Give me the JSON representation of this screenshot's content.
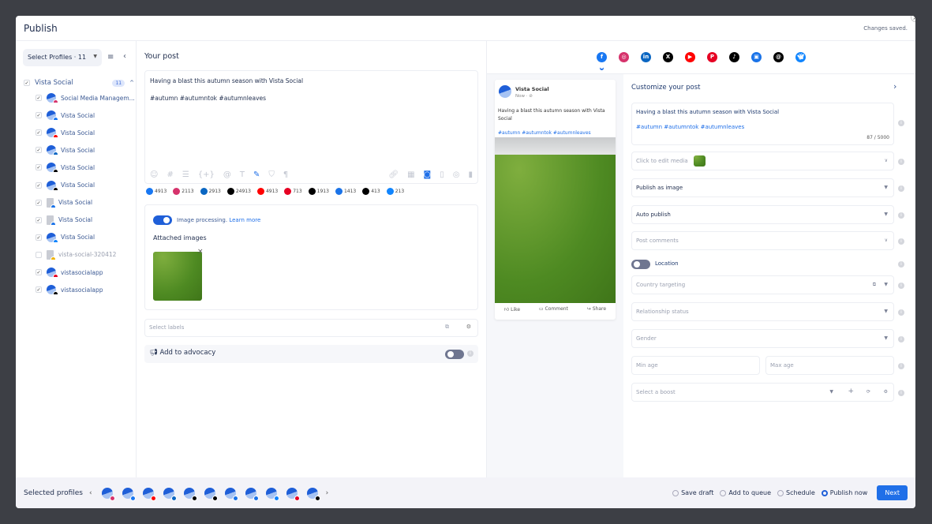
{
  "header": {
    "title": "Publish",
    "status": "Changes saved."
  },
  "sidebar": {
    "select_label": "Select Profiles · 11",
    "group": {
      "name": "Vista Social",
      "count": "11"
    },
    "profiles": [
      {
        "name": "Social Media Managem...",
        "network": "instagram",
        "checked": true,
        "color": "#d6336c"
      },
      {
        "name": "Vista Social",
        "network": "facebook",
        "checked": true,
        "color": "#1877f2"
      },
      {
        "name": "Vista Social",
        "network": "youtube",
        "checked": true,
        "color": "#ff0000"
      },
      {
        "name": "Vista Social",
        "network": "linkedin",
        "checked": true,
        "color": "#0a66c2"
      },
      {
        "name": "Vista Social",
        "network": "x",
        "checked": true,
        "color": "#000000"
      },
      {
        "name": "Vista Social",
        "network": "tiktok",
        "checked": true,
        "color": "#000000"
      },
      {
        "name": "Vista Social",
        "network": "google-business",
        "checked": true,
        "color": "#1a73e8"
      },
      {
        "name": "Vista Social",
        "network": "google-business",
        "checked": true,
        "color": "#1a73e8"
      },
      {
        "name": "Vista Social",
        "network": "bluesky",
        "checked": true,
        "color": "#1185fe"
      },
      {
        "name": "vista-social-320412",
        "network": "other",
        "checked": false,
        "color": "#f0b400"
      },
      {
        "name": "vistasocialapp",
        "network": "pinterest",
        "checked": true,
        "color": "#e60023"
      },
      {
        "name": "vistasocialapp",
        "network": "threads",
        "checked": true,
        "color": "#000000"
      }
    ]
  },
  "post": {
    "title": "Your post",
    "line1": "Having a blast this autumn season with Vista Social",
    "line2": "#autumn #autumntok #autumnleaves",
    "counts": [
      {
        "net": "facebook",
        "v": "4913",
        "c": "#1877f2"
      },
      {
        "net": "instagram",
        "v": "2113",
        "c": "#d6336c"
      },
      {
        "net": "linkedin",
        "v": "2913",
        "c": "#0a66c2"
      },
      {
        "net": "x",
        "v": "24913",
        "c": "#000"
      },
      {
        "net": "youtube",
        "v": "4913",
        "c": "#ff0000"
      },
      {
        "net": "pinterest",
        "v": "713",
        "c": "#e60023"
      },
      {
        "net": "tiktok",
        "v": "1913",
        "c": "#000"
      },
      {
        "net": "google-business",
        "v": "1413",
        "c": "#1a73e8"
      },
      {
        "net": "threads",
        "v": "413",
        "c": "#000"
      },
      {
        "net": "bluesky",
        "v": "213",
        "c": "#1185fe"
      }
    ],
    "image_processing": "Image processing.",
    "learn_more": "Learn more",
    "attached_images": "Attached images",
    "labels_placeholder": "Select labels",
    "advocacy": "Add to advocacy"
  },
  "preview": {
    "name": "Vista Social",
    "time": "Now · ⊘",
    "text": "Having a blast this autumn season with Vista Social",
    "tags": "#autumn #autumntok #autumnleaves",
    "like": "Like",
    "comment": "Comment",
    "share": "Share"
  },
  "customize": {
    "title": "Customize your post",
    "text1": "Having a blast this autumn season with Vista Social",
    "text2": "#autumn #autumntok #autumnleaves",
    "char_count": "87 / 5000",
    "media": "Click to edit media",
    "publish_as": "Publish as image",
    "auto_publish": "Auto publish",
    "post_comments": "Post comments",
    "location": "Location",
    "country": "Country targeting",
    "relationship": "Relationship status",
    "gender": "Gender",
    "min_age": "Min age",
    "max_age": "Max age",
    "boost": "Select a boost"
  },
  "footer": {
    "selected": "Selected profiles",
    "options": [
      "Save draft",
      "Add to queue",
      "Schedule",
      "Publish now"
    ],
    "selected_option": "Publish now",
    "next": "Next"
  }
}
